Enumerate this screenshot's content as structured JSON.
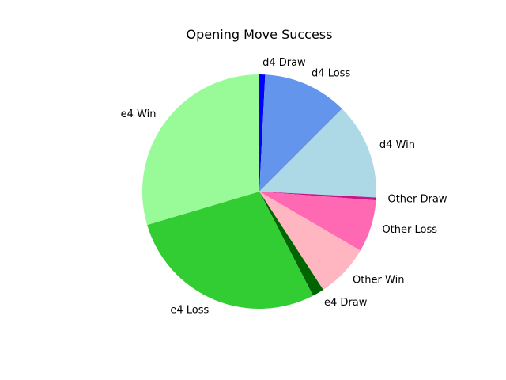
{
  "chart_data": {
    "type": "pie",
    "title": "Opening Move Success",
    "start_angle_deg": 90,
    "direction": "clockwise",
    "slices": [
      {
        "label": "d4 Draw",
        "value": 0.8,
        "color": "#0000ff"
      },
      {
        "label": "d4 Loss",
        "value": 11.7,
        "color": "#6495ed"
      },
      {
        "label": "d4 Win",
        "value": 13.3,
        "color": "#add8e6"
      },
      {
        "label": "Other Draw",
        "value": 0.4,
        "color": "#c71585"
      },
      {
        "label": "Other Loss",
        "value": 7.2,
        "color": "#ff69b4"
      },
      {
        "label": "Other Win",
        "value": 7.4,
        "color": "#ffb6c1"
      },
      {
        "label": "e4 Draw",
        "value": 1.6,
        "color": "#006400"
      },
      {
        "label": "e4 Loss",
        "value": 28.0,
        "color": "#32cd32"
      },
      {
        "label": "e4 Win",
        "value": 29.6,
        "color": "#98fb98"
      }
    ]
  }
}
